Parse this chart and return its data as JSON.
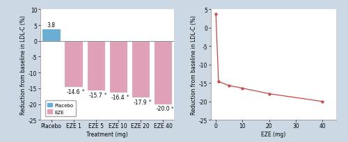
{
  "background_color": "#ccd9e5",
  "bar_categories": [
    "Placebo",
    "EZE 1",
    "EZE 5",
    "EZE 10",
    "EZE 20",
    "EZE 40"
  ],
  "bar_values": [
    3.8,
    -14.6,
    -15.7,
    -16.4,
    -17.9,
    -20.0
  ],
  "bar_colors": [
    "#6aaed6",
    "#dfa0b8",
    "#dfa0b8",
    "#dfa0b8",
    "#dfa0b8",
    "#dfa0b8"
  ],
  "bar_label_positive": "3.8",
  "bar_labels_negative": [
    "-14.6",
    "-15.7",
    "-16.4",
    "-17.9",
    "-20.0"
  ],
  "bar_ylabel": "Reduction from baseline in LDL-C (%)",
  "bar_xlabel": "Treatment (mg)",
  "bar_ylim": [
    -25,
    10
  ],
  "bar_yticks": [
    -25,
    -20,
    -15,
    -10,
    -5,
    0,
    5,
    10
  ],
  "legend_labels": [
    "Placebo",
    "EZE"
  ],
  "legend_colors": [
    "#6aaed6",
    "#dfa0b8"
  ],
  "line_x": [
    0,
    1,
    5,
    10,
    20,
    40
  ],
  "line_y": [
    3.8,
    -14.6,
    -15.7,
    -16.4,
    -17.9,
    -20.0
  ],
  "line_color": "#cc4444",
  "line_ylabel": "Reduction from baseline in LDL-C (%)",
  "line_xlabel": "EZE (mg)",
  "line_ylim": [
    -25,
    5
  ],
  "line_yticks": [
    -25,
    -20,
    -15,
    -10,
    -5,
    0,
    5
  ],
  "line_xticks": [
    0,
    10,
    20,
    30,
    40
  ],
  "axis_bg": "#ffffff",
  "tick_fontsize": 5.5,
  "label_fontsize": 5.5,
  "bar_label_fontsize": 5.5,
  "zero_line_color": "#888888"
}
